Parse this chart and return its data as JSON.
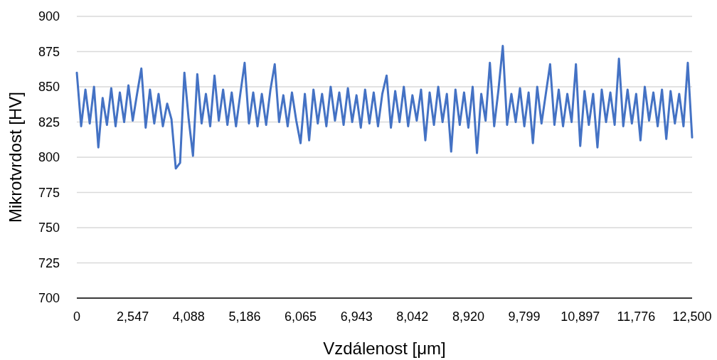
{
  "chart_data": {
    "type": "line",
    "xlabel": "Vzdálenost [μm]",
    "ylabel": "Mikrotvrdost [HV]",
    "ylim": [
      700,
      900
    ],
    "yticks": [
      700,
      725,
      750,
      775,
      800,
      825,
      850,
      875,
      900
    ],
    "grid": "y",
    "marker": "none",
    "line_style": "solid",
    "categories": [
      "0",
      null,
      null,
      null,
      null,
      null,
      null,
      null,
      null,
      null,
      null,
      null,
      null,
      "2,547",
      null,
      null,
      null,
      null,
      null,
      null,
      null,
      null,
      null,
      null,
      null,
      null,
      "4,088",
      null,
      null,
      null,
      null,
      null,
      null,
      null,
      null,
      null,
      null,
      null,
      null,
      "5,186",
      null,
      null,
      null,
      null,
      null,
      null,
      null,
      null,
      null,
      null,
      null,
      null,
      "6,065",
      null,
      null,
      null,
      null,
      null,
      null,
      null,
      null,
      null,
      null,
      null,
      null,
      "6,943",
      null,
      null,
      null,
      null,
      null,
      null,
      null,
      null,
      null,
      null,
      null,
      null,
      "8,042",
      null,
      null,
      null,
      null,
      null,
      null,
      null,
      null,
      null,
      null,
      null,
      null,
      "8,920",
      null,
      null,
      null,
      null,
      null,
      null,
      null,
      null,
      null,
      null,
      null,
      null,
      "9,799",
      null,
      null,
      null,
      null,
      null,
      null,
      null,
      null,
      null,
      null,
      null,
      null,
      "10,897",
      null,
      null,
      null,
      null,
      null,
      null,
      null,
      null,
      null,
      null,
      null,
      null,
      "11,776",
      null,
      null,
      null,
      null,
      null,
      null,
      null,
      null,
      null,
      null,
      null,
      null,
      "12,500"
    ],
    "series": [
      {
        "color": "#4472c4",
        "values": [
          860,
          822,
          848,
          824,
          850,
          807,
          842,
          823,
          849,
          822,
          846,
          825,
          851,
          826,
          845,
          863,
          821,
          848,
          824,
          845,
          822,
          838,
          827,
          792,
          796,
          860,
          827,
          801,
          859,
          824,
          845,
          822,
          858,
          826,
          848,
          823,
          846,
          822,
          845,
          867,
          824,
          846,
          822,
          845,
          823,
          848,
          866,
          825,
          844,
          822,
          846,
          826,
          810,
          845,
          812,
          848,
          824,
          845,
          822,
          850,
          826,
          846,
          823,
          849,
          825,
          844,
          821,
          848,
          824,
          846,
          822,
          845,
          858,
          821,
          847,
          825,
          850,
          822,
          844,
          826,
          848,
          812,
          846,
          823,
          850,
          825,
          845,
          804,
          848,
          823,
          846,
          821,
          850,
          803,
          845,
          826,
          867,
          822,
          848,
          879,
          823,
          845,
          825,
          849,
          822,
          846,
          810,
          850,
          824,
          845,
          866,
          823,
          848,
          822,
          845,
          825,
          866,
          808,
          847,
          823,
          845,
          807,
          848,
          825,
          846,
          823,
          870,
          822,
          848,
          824,
          845,
          812,
          850,
          826,
          846,
          822,
          848,
          813,
          847,
          824,
          845,
          822,
          867,
          814
        ]
      }
    ]
  }
}
